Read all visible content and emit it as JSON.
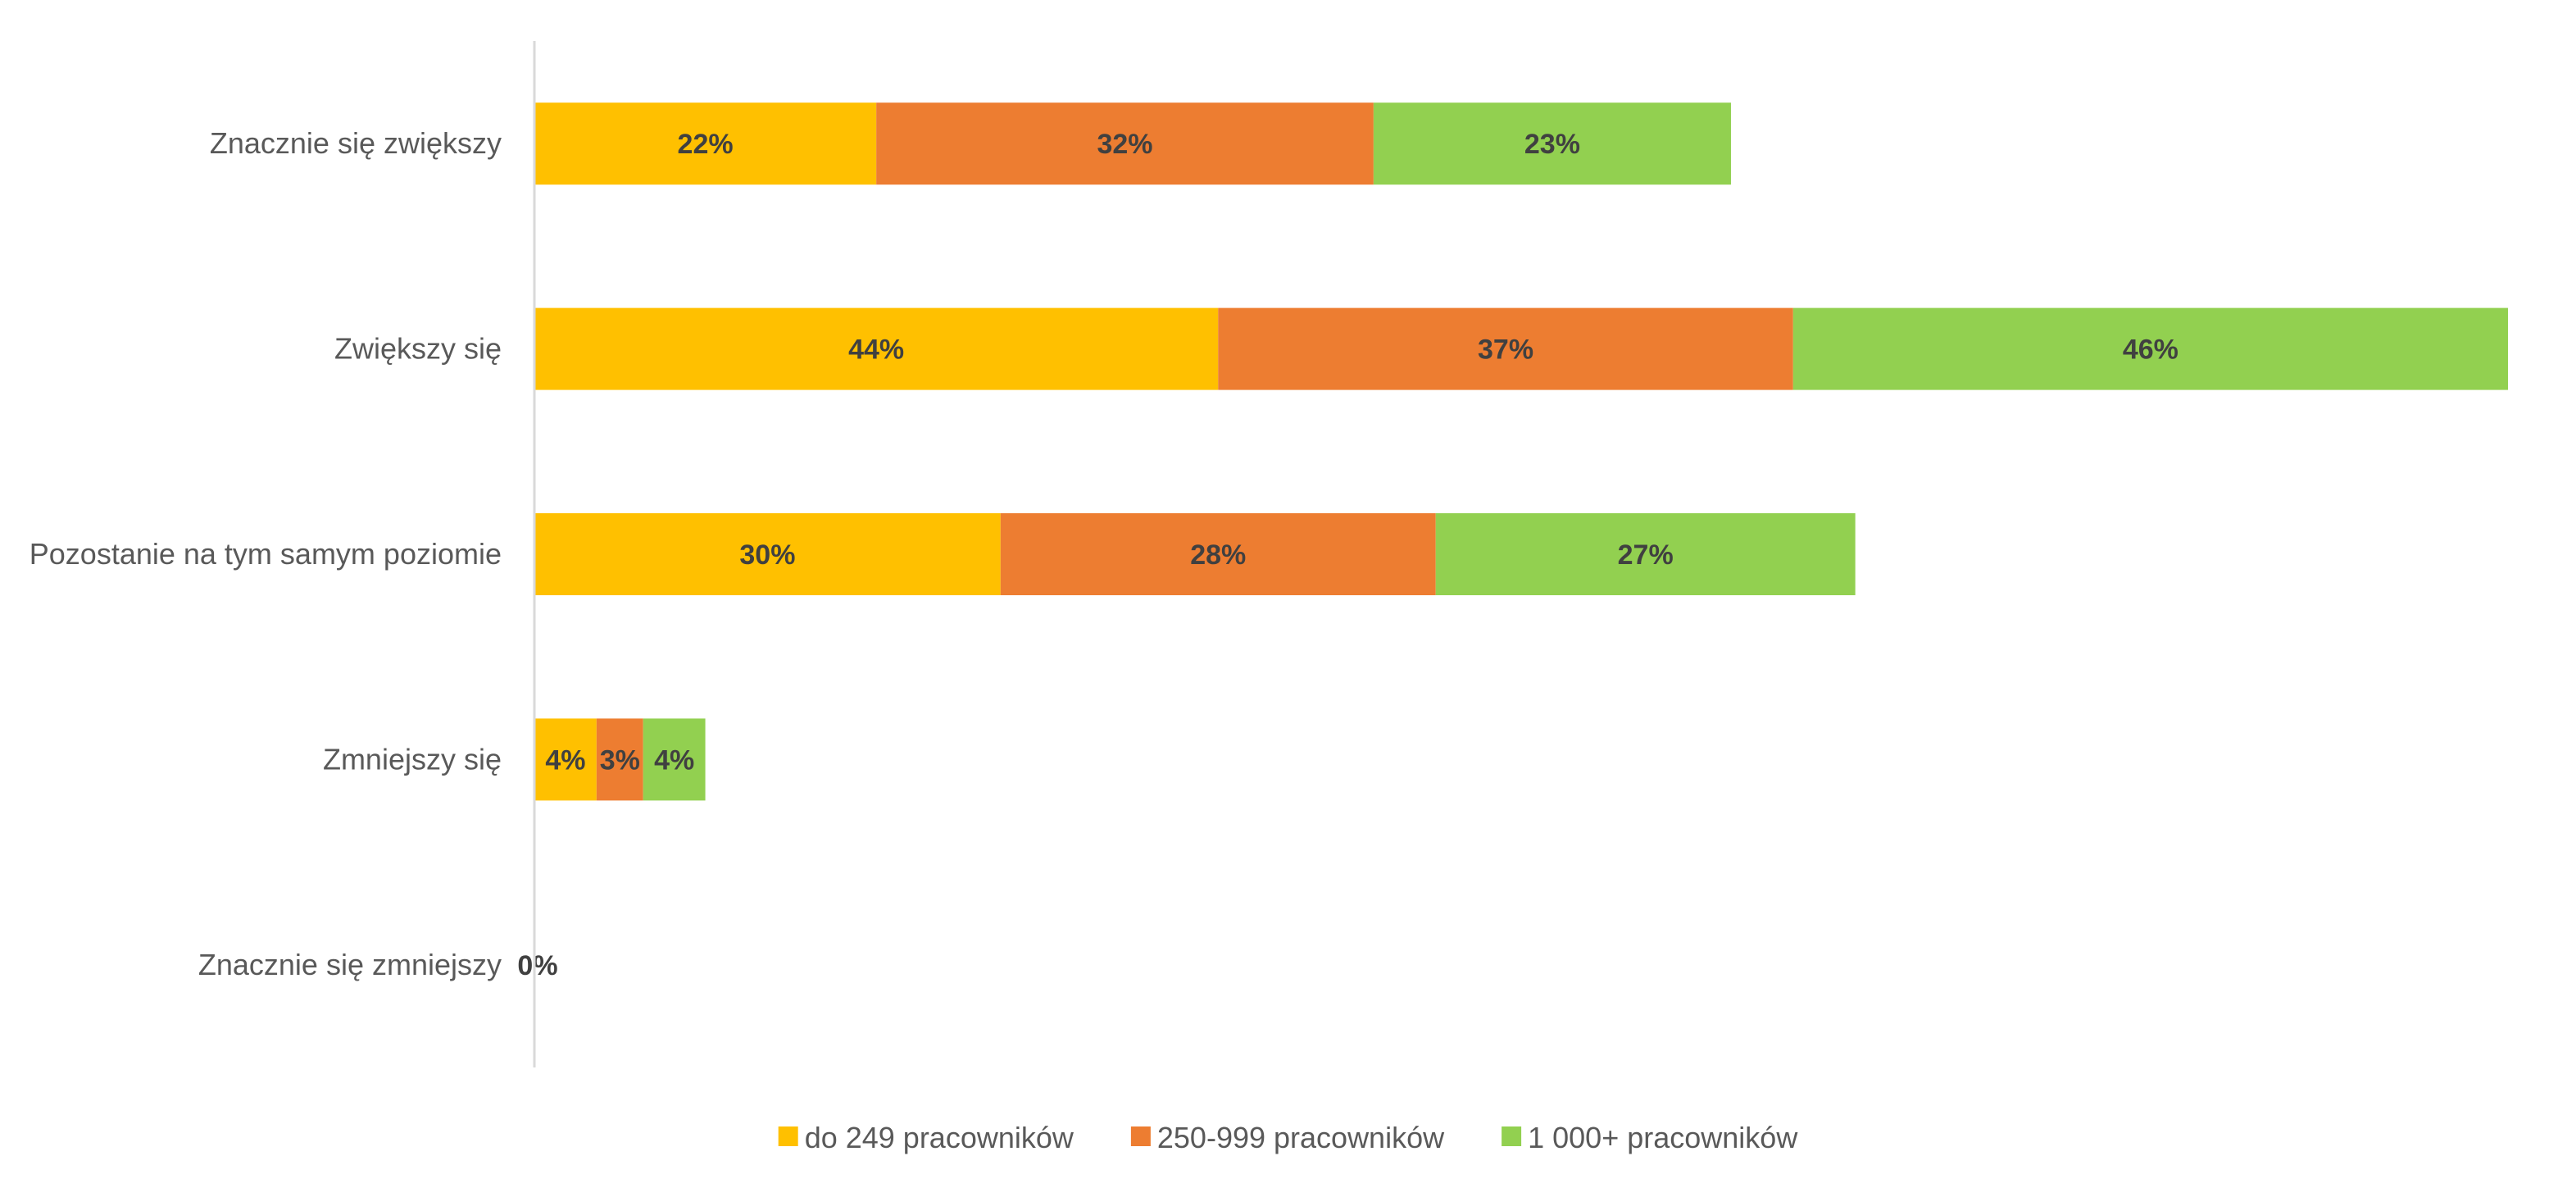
{
  "chart_data": {
    "type": "bar",
    "orientation": "horizontal",
    "stacked": true,
    "categories": [
      "Znacznie się zwiększy",
      "Zwiększy się",
      "Pozostanie na tym samym poziomie",
      "Zmniejszy się",
      "Znacznie się zmniejszy"
    ],
    "series": [
      {
        "name": "do 249 pracowników",
        "color": "#FFC000",
        "values": [
          22,
          44,
          30,
          4,
          0
        ],
        "labels": [
          "22%",
          "44%",
          "30%",
          "4%",
          "0%"
        ]
      },
      {
        "name": "250-999 pracowników",
        "color": "#ED7D31",
        "values": [
          32,
          37,
          28,
          3,
          0
        ],
        "labels": [
          "32%",
          "37%",
          "28%",
          "3%",
          ""
        ]
      },
      {
        "name": "1 000+ pracowników",
        "color": "#92D050",
        "values": [
          23,
          46,
          27,
          4,
          0
        ],
        "labels": [
          "23%",
          "46%",
          "27%",
          "4%",
          ""
        ]
      }
    ],
    "value_unit": "%",
    "xlim": [
      0,
      127
    ],
    "x_axis_visible": false,
    "grid": false,
    "legend_position": "bottom"
  }
}
